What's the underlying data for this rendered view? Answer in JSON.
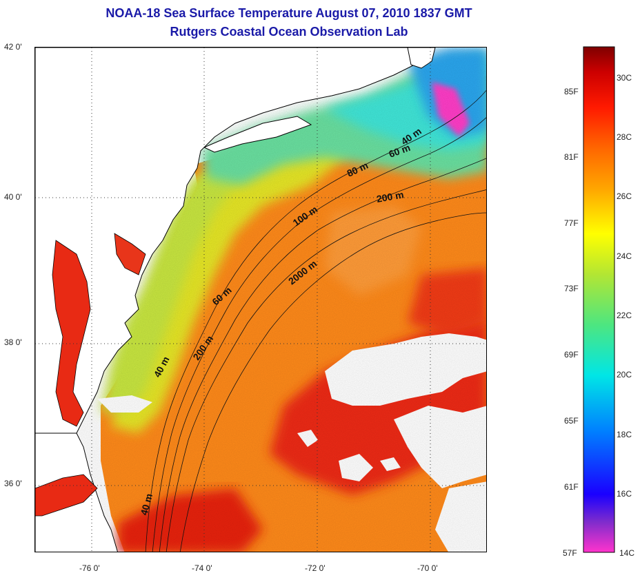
{
  "title": {
    "line1": "NOAA-18 Sea Surface Temperature August 07, 2010 1837 GMT",
    "line2": "Rutgers Coastal Ocean Observation Lab"
  },
  "map": {
    "lat_labels": [
      "42 0'",
      "40 0'",
      "38 0'",
      "36 0'"
    ],
    "lon_labels": [
      "-76 0'",
      "-74 0'",
      "-72 0'",
      "-70 0'"
    ],
    "contour_labels": [
      "40 m",
      "60 m",
      "80 m",
      "200 m",
      "100 m",
      "2000 m",
      "60 m",
      "200 m",
      "40 m",
      "40 m"
    ]
  },
  "colorbar": {
    "fahrenheit": [
      "85F",
      "81F",
      "77F",
      "73F",
      "69F",
      "65F",
      "61F",
      "57F"
    ],
    "celsius": [
      "30C",
      "28C",
      "26C",
      "24C",
      "22C",
      "20C",
      "18C",
      "16C",
      "14C"
    ],
    "colors": [
      "#ff33cc",
      "#7f2ccc",
      "#1a00ff",
      "#0080ff",
      "#00e6e6",
      "#4de680",
      "#b3e633",
      "#ffff00",
      "#ffa500",
      "#ff6600",
      "#ff1a00",
      "#cc0000",
      "#7f0000"
    ]
  }
}
